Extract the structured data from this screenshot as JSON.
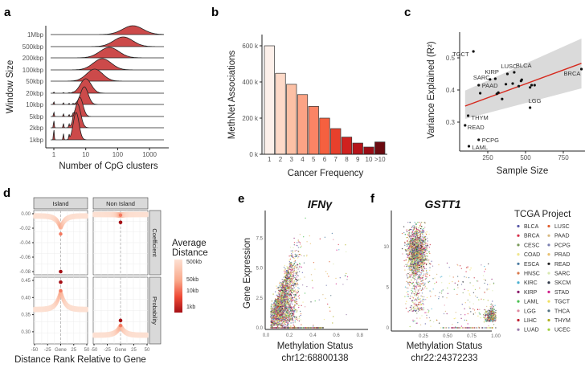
{
  "chart_data": [
    {
      "panel": "a",
      "type": "area",
      "title": "",
      "xlabel": "Number of CpG clusters",
      "ylabel": "Window Size",
      "xscale": "log",
      "xticks": [
        "1",
        "10",
        "100",
        "1000"
      ],
      "series": [
        {
          "name": "1Mbp",
          "mode": 300,
          "spread": 0.32,
          "height": 11
        },
        {
          "name": "500kbp",
          "mode": 150,
          "spread": 0.3,
          "height": 12
        },
        {
          "name": "200kbp",
          "mode": 55,
          "spread": 0.3,
          "height": 13
        },
        {
          "name": "100kbp",
          "mode": 33,
          "spread": 0.28,
          "height": 14
        },
        {
          "name": "50kbp",
          "mode": 19,
          "spread": 0.25,
          "height": 15
        },
        {
          "name": "20kbp",
          "mode": 10,
          "spread": 0.17,
          "height": 18
        },
        {
          "name": "10kbp",
          "mode": 9,
          "spread": 0.12,
          "height": 22
        },
        {
          "name": "5kbp",
          "mode": 6.5,
          "spread": 0.1,
          "height": 24
        },
        {
          "name": "2kbp",
          "mode": 5.5,
          "spread": 0.1,
          "height": 30
        },
        {
          "name": "1kbp",
          "mode": 5,
          "spread": 0.09,
          "height": 34
        }
      ]
    },
    {
      "panel": "b",
      "type": "bar",
      "title": "",
      "xlabel": "Cancer Frequency",
      "ylabel": "MethNet Associations",
      "ylim": [
        0,
        650000
      ],
      "categories": [
        "1",
        "2",
        "3",
        "4",
        "5",
        "6",
        "7",
        "8",
        "9",
        "10",
        ">10"
      ],
      "values": [
        600000,
        448000,
        387000,
        330000,
        265000,
        200000,
        142000,
        95000,
        62000,
        40000,
        68000
      ],
      "yticks": [
        "0 k",
        "200 k",
        "400 k",
        "600 k"
      ],
      "colors": [
        "#fdf0ea",
        "#fdd9c8",
        "#fcc0a5",
        "#fca385",
        "#fb8465",
        "#f5603f",
        "#e8402c",
        "#d0211f",
        "#b71319",
        "#9b0c15",
        "#6b0a10"
      ]
    },
    {
      "panel": "c",
      "type": "scatter",
      "title": "",
      "xlabel": "Sample Size",
      "ylabel": "Variance Explained (R²)",
      "xlim": [
        75,
        900
      ],
      "ylim": [
        0.2,
        0.56
      ],
      "xticks": [
        "250",
        "500",
        "750"
      ],
      "yticks": [
        "0.3",
        "0.4",
        "0.5"
      ],
      "regression": {
        "x": [
          100,
          870
        ],
        "y": [
          0.35,
          0.483
        ],
        "ci_low": [
          0.31,
          0.405
        ],
        "ci_high": [
          0.398,
          0.56
        ],
        "color": "#d62a1e"
      },
      "points": [
        {
          "label": "TGCT",
          "x": 155,
          "y": 0.52
        },
        {
          "label": "KIRP",
          "x": 300,
          "y": 0.435
        },
        {
          "label": "SARC",
          "x": 265,
          "y": 0.433
        },
        {
          "label": "PAAD",
          "x": 190,
          "y": 0.415
        },
        {
          "label": "LUSC",
          "x": 380,
          "y": 0.45
        },
        {
          "label": "BLCA",
          "x": 425,
          "y": 0.455
        },
        {
          "label": "BRCA",
          "x": 870,
          "y": 0.465
        },
        {
          "label": "LGG",
          "x": 530,
          "y": 0.345
        },
        {
          "label": "THYM",
          "x": 120,
          "y": 0.32
        },
        {
          "label": "READ",
          "x": 100,
          "y": 0.29
        },
        {
          "label": "PCPG",
          "x": 190,
          "y": 0.245
        },
        {
          "label": "LAML",
          "x": 125,
          "y": 0.225
        },
        {
          "label": "",
          "x": 200,
          "y": 0.39
        },
        {
          "label": "",
          "x": 310,
          "y": 0.388
        },
        {
          "label": "",
          "x": 320,
          "y": 0.392
        },
        {
          "label": "",
          "x": 345,
          "y": 0.372
        },
        {
          "label": "",
          "x": 370,
          "y": 0.418
        },
        {
          "label": "",
          "x": 415,
          "y": 0.42
        },
        {
          "label": "",
          "x": 455,
          "y": 0.412
        },
        {
          "label": "",
          "x": 470,
          "y": 0.428
        },
        {
          "label": "",
          "x": 475,
          "y": 0.432
        },
        {
          "label": "",
          "x": 530,
          "y": 0.408
        },
        {
          "label": "",
          "x": 540,
          "y": 0.415
        },
        {
          "label": "",
          "x": 560,
          "y": 0.415
        }
      ]
    },
    {
      "panel": "d",
      "type": "scatter",
      "xlabel": "Distance Rank Relative to Gene",
      "xticks": [
        "-50",
        "-25",
        "Gene",
        "25",
        "50"
      ],
      "columns": [
        "Island",
        "Non Island"
      ],
      "rows": [
        "Coefficient",
        "Probability"
      ],
      "legend": {
        "title": [
          "Average",
          "Distance"
        ],
        "labels": [
          "500kb",
          "50kb",
          "10kb",
          "1kb"
        ]
      },
      "yticks": {
        "Coefficient": [
          "0.00",
          "-0.02",
          "-0.04",
          "-0.06",
          "-0.08"
        ],
        "Probability": [
          "0.45",
          "0.40",
          "0.35",
          "0.30"
        ]
      },
      "facets": [
        {
          "col": "Island",
          "row": "Coefficient",
          "baseline": -0.003,
          "peak": -0.02,
          "gene_value": -0.08,
          "near_value": -0.028
        },
        {
          "col": "Non Island",
          "row": "Coefficient",
          "baseline": -0.001,
          "peak": -0.002,
          "gene_value": -0.012,
          "near_value": -0.002
        },
        {
          "col": "Island",
          "row": "Probability",
          "baseline": 0.365,
          "peak": 0.42,
          "gene_value": 0.445,
          "near_value": 0.42
        },
        {
          "col": "Non Island",
          "row": "Probability",
          "baseline": 0.29,
          "peak": 0.318,
          "gene_value": 0.333,
          "near_value": 0.318
        }
      ]
    },
    {
      "panel": "e",
      "type": "scatter",
      "title": "IFNγ",
      "xlabel": "Methylation Status",
      "xlabel2": "chr12:68800138",
      "ylabel": "Gene Expression",
      "xticks": [
        "0.0",
        "0.2",
        "0.4",
        "0.6",
        "0.8"
      ],
      "yticks": [
        "0.0",
        "2.5",
        "5.0",
        "7.5"
      ],
      "xlim": [
        0,
        0.82
      ],
      "ylim": [
        0,
        9.5
      ],
      "clusters": [
        {
          "x_mean": 0.15,
          "x_sd": 0.06,
          "y_model": "rising",
          "n": 2600
        }
      ]
    },
    {
      "panel": "f",
      "type": "scatter",
      "title": "GSTT1",
      "xlabel": "Methylation Status",
      "xlabel2": "chr22:24372233",
      "xticks": [
        "0.25",
        "0.50",
        "0.75",
        "1.00"
      ],
      "yticks": [
        "0",
        "5",
        "10"
      ],
      "xlim": [
        0,
        1
      ],
      "ylim": [
        0,
        13.5
      ],
      "clusters": [
        {
          "x_mean": 0.18,
          "x_sd": 0.05,
          "y_mean": 9.5,
          "y_sd": 1.4,
          "n": 2000
        },
        {
          "x_mean": 0.95,
          "x_sd": 0.03,
          "y_mean": 0.8,
          "y_sd": 0.8,
          "n": 500
        }
      ]
    }
  ],
  "panel_labels": [
    "a",
    "b",
    "c",
    "d",
    "e",
    "f"
  ],
  "tcga_legend": {
    "title": "TCGA Project",
    "items": [
      {
        "name": "BLCA",
        "color": "#5a5aa8"
      },
      {
        "name": "BRCA",
        "color": "#d6304a"
      },
      {
        "name": "CESC",
        "color": "#7a9a5a"
      },
      {
        "name": "COAD",
        "color": "#f0e68c"
      },
      {
        "name": "ESCA",
        "color": "#4a7aa0"
      },
      {
        "name": "HNSC",
        "color": "#d9774a"
      },
      {
        "name": "KIRC",
        "color": "#4ab0d0"
      },
      {
        "name": "KIRP",
        "color": "#8a1a6a"
      },
      {
        "name": "LAML",
        "color": "#4ac050"
      },
      {
        "name": "LGG",
        "color": "#e08aa0"
      },
      {
        "name": "LIHC",
        "color": "#c02030"
      },
      {
        "name": "LUAD",
        "color": "#9a7aaa"
      },
      {
        "name": "LUSC",
        "color": "#e06030"
      },
      {
        "name": "PAAD",
        "color": "#d8b880"
      },
      {
        "name": "PCPG",
        "color": "#7a80b0"
      },
      {
        "name": "PRAD",
        "color": "#e8c070"
      },
      {
        "name": "READ",
        "color": "#202020"
      },
      {
        "name": "SARC",
        "color": "#d8e8b0"
      },
      {
        "name": "SKCM",
        "color": "#303848"
      },
      {
        "name": "STAD",
        "color": "#d0208a"
      },
      {
        "name": "TGCT",
        "color": "#f0e060"
      },
      {
        "name": "THCA",
        "color": "#507080"
      },
      {
        "name": "THYM",
        "color": "#b0b020"
      },
      {
        "name": "UCEC",
        "color": "#a0d040"
      }
    ]
  },
  "ridge_color": "#cc4a4a"
}
